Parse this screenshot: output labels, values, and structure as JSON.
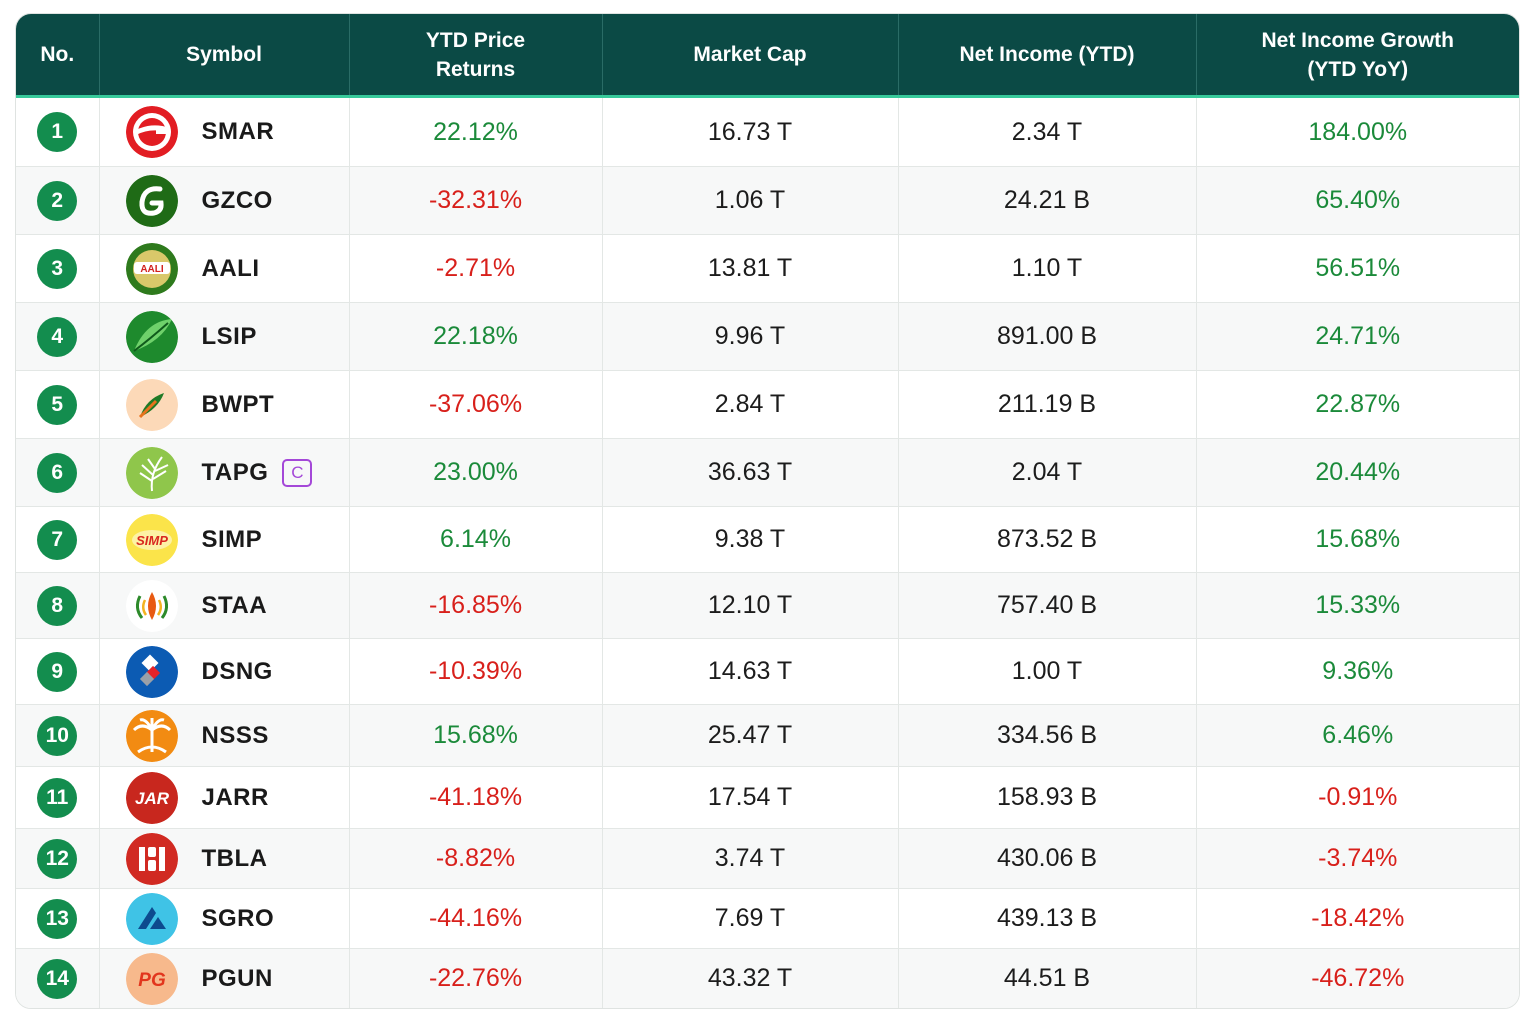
{
  "columns": [
    "No.",
    "Symbol",
    "YTD Price Returns",
    "Market Cap",
    "Net Income (YTD)",
    "Net Income Growth (YTD YoY)"
  ],
  "colors": {
    "header_bg": "#0b4a45",
    "accent_line": "#37c99a",
    "badge": "#138d4e",
    "positive": "#1b8a3a",
    "negative": "#d8201b",
    "tag": "#a448d8"
  },
  "rows": [
    {
      "no": "1",
      "symbol": "SMAR",
      "logo": "smar-logo",
      "ytd": "22.12%",
      "ytd_sign": "pos",
      "mcap": "16.73 T",
      "ni": "2.34 T",
      "growth": "184.00%",
      "growth_sign": "pos"
    },
    {
      "no": "2",
      "symbol": "GZCO",
      "logo": "gzco-logo",
      "ytd": "-32.31%",
      "ytd_sign": "neg",
      "mcap": "1.06 T",
      "ni": "24.21 B",
      "growth": "65.40%",
      "growth_sign": "pos"
    },
    {
      "no": "3",
      "symbol": "AALI",
      "logo": "aali-logo",
      "logo_text": "AALI",
      "ytd": "-2.71%",
      "ytd_sign": "neg",
      "mcap": "13.81 T",
      "ni": "1.10 T",
      "growth": "56.51%",
      "growth_sign": "pos"
    },
    {
      "no": "4",
      "symbol": "LSIP",
      "logo": "lsip-logo",
      "ytd": "22.18%",
      "ytd_sign": "pos",
      "mcap": "9.96 T",
      "ni": "891.00 B",
      "growth": "24.71%",
      "growth_sign": "pos"
    },
    {
      "no": "5",
      "symbol": "BWPT",
      "logo": "bwpt-logo",
      "ytd": "-37.06%",
      "ytd_sign": "neg",
      "mcap": "2.84 T",
      "ni": "211.19 B",
      "growth": "22.87%",
      "growth_sign": "pos"
    },
    {
      "no": "6",
      "symbol": "TAPG",
      "logo": "tapg-logo",
      "tag": "C",
      "ytd": "23.00%",
      "ytd_sign": "pos",
      "mcap": "36.63 T",
      "ni": "2.04 T",
      "growth": "20.44%",
      "growth_sign": "pos"
    },
    {
      "no": "7",
      "symbol": "SIMP",
      "logo": "simp-logo",
      "logo_text": "SIMP",
      "ytd": "6.14%",
      "ytd_sign": "pos",
      "mcap": "9.38 T",
      "ni": "873.52 B",
      "growth": "15.68%",
      "growth_sign": "pos"
    },
    {
      "no": "8",
      "symbol": "STAA",
      "logo": "staa-logo",
      "ytd": "-16.85%",
      "ytd_sign": "neg",
      "mcap": "12.10 T",
      "ni": "757.40 B",
      "growth": "15.33%",
      "growth_sign": "pos"
    },
    {
      "no": "9",
      "symbol": "DSNG",
      "logo": "dsng-logo",
      "ytd": "-10.39%",
      "ytd_sign": "neg",
      "mcap": "14.63 T",
      "ni": "1.00 T",
      "growth": "9.36%",
      "growth_sign": "pos"
    },
    {
      "no": "10",
      "symbol": "NSSS",
      "logo": "nsss-logo",
      "ytd": "15.68%",
      "ytd_sign": "pos",
      "mcap": "25.47 T",
      "ni": "334.56 B",
      "growth": "6.46%",
      "growth_sign": "pos"
    },
    {
      "no": "11",
      "symbol": "JARR",
      "logo": "jarr-logo",
      "logo_text": "JAR",
      "ytd": "-41.18%",
      "ytd_sign": "neg",
      "mcap": "17.54 T",
      "ni": "158.93 B",
      "growth": "-0.91%",
      "growth_sign": "neg"
    },
    {
      "no": "12",
      "symbol": "TBLA",
      "logo": "tbla-logo",
      "ytd": "-8.82%",
      "ytd_sign": "neg",
      "mcap": "3.74 T",
      "ni": "430.06 B",
      "growth": "-3.74%",
      "growth_sign": "neg"
    },
    {
      "no": "13",
      "symbol": "SGRO",
      "logo": "sgro-logo",
      "ytd": "-44.16%",
      "ytd_sign": "neg",
      "mcap": "7.69 T",
      "ni": "439.13 B",
      "growth": "-18.42%",
      "growth_sign": "neg"
    },
    {
      "no": "14",
      "symbol": "PGUN",
      "logo": "pgun-logo",
      "logo_text": "PG",
      "ytd": "-22.76%",
      "ytd_sign": "neg",
      "mcap": "43.32 T",
      "ni": "44.51 B",
      "growth": "-46.72%",
      "growth_sign": "neg"
    }
  ]
}
